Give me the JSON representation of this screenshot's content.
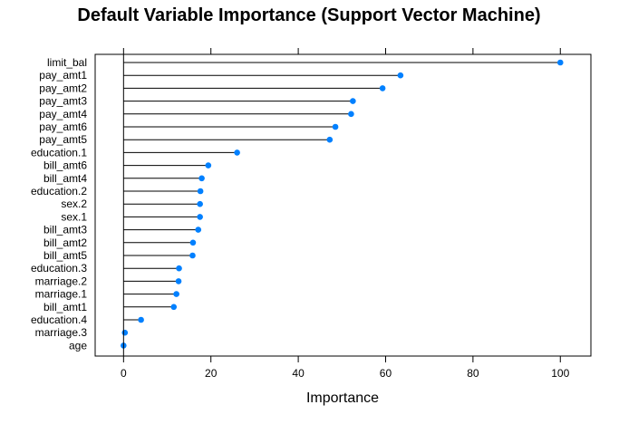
{
  "chart_data": {
    "type": "dotplot",
    "title": "Default Variable Importance (Support Vector Machine)",
    "xlabel": "Importance",
    "ylabel": "",
    "xlim": [
      -6.5,
      107
    ],
    "xticks": [
      0,
      20,
      40,
      60,
      80,
      100
    ],
    "grid": false,
    "categories": [
      "limit_bal",
      "pay_amt1",
      "pay_amt2",
      "pay_amt3",
      "pay_amt4",
      "pay_amt6",
      "pay_amt5",
      "education.1",
      "bill_amt6",
      "bill_amt4",
      "education.2",
      "sex.2",
      "sex.1",
      "bill_amt3",
      "bill_amt2",
      "bill_amt5",
      "education.3",
      "marriage.2",
      "marriage.1",
      "bill_amt1",
      "education.4",
      "marriage.3",
      "age"
    ],
    "values": [
      100,
      63.4,
      59.3,
      52.5,
      52.1,
      48.5,
      47.2,
      26.0,
      19.4,
      17.9,
      17.6,
      17.5,
      17.5,
      17.1,
      15.9,
      15.8,
      12.7,
      12.6,
      12.1,
      11.5,
      4.0,
      0.3,
      0
    ],
    "point_color": "#0080ff",
    "line_color": "#000000"
  }
}
